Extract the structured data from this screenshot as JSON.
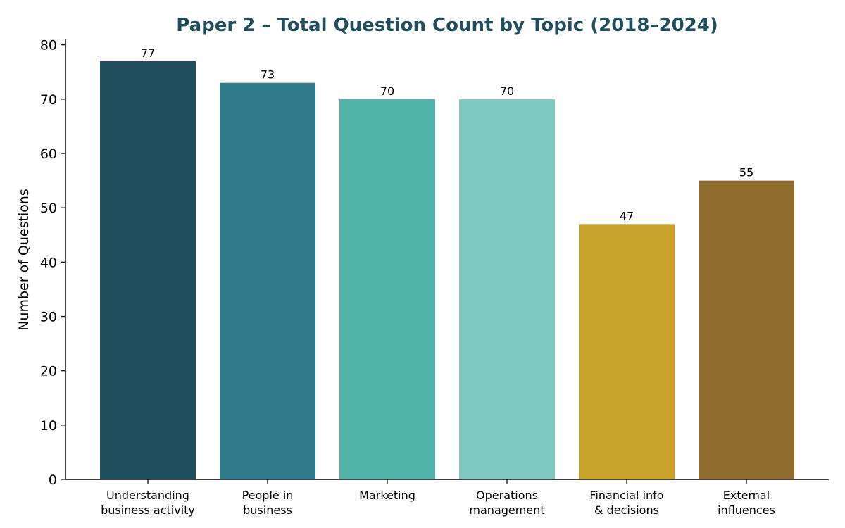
{
  "chart_data": {
    "type": "bar",
    "title": "Paper 2 – Total Question Count by Topic (2018–2024)",
    "xlabel": "",
    "ylabel": "Number of Questions",
    "ylim": [
      0,
      81
    ],
    "yticks": [
      0,
      10,
      20,
      30,
      40,
      50,
      60,
      70,
      80
    ],
    "categories": [
      [
        "Understanding",
        "business activity"
      ],
      [
        "People in",
        "business"
      ],
      [
        "Marketing"
      ],
      [
        "Operations",
        "management"
      ],
      [
        "Financial info",
        "& decisions"
      ],
      [
        "External",
        "influences"
      ]
    ],
    "values": [
      77,
      73,
      70,
      70,
      47,
      55
    ],
    "colors": [
      "#214e5d",
      "#2e7b8c",
      "#51b3aa",
      "#81c9be",
      "#c8a22a",
      "#8d6a2d"
    ],
    "title_color": "#214e5d",
    "grid": false,
    "data_labels": true
  }
}
